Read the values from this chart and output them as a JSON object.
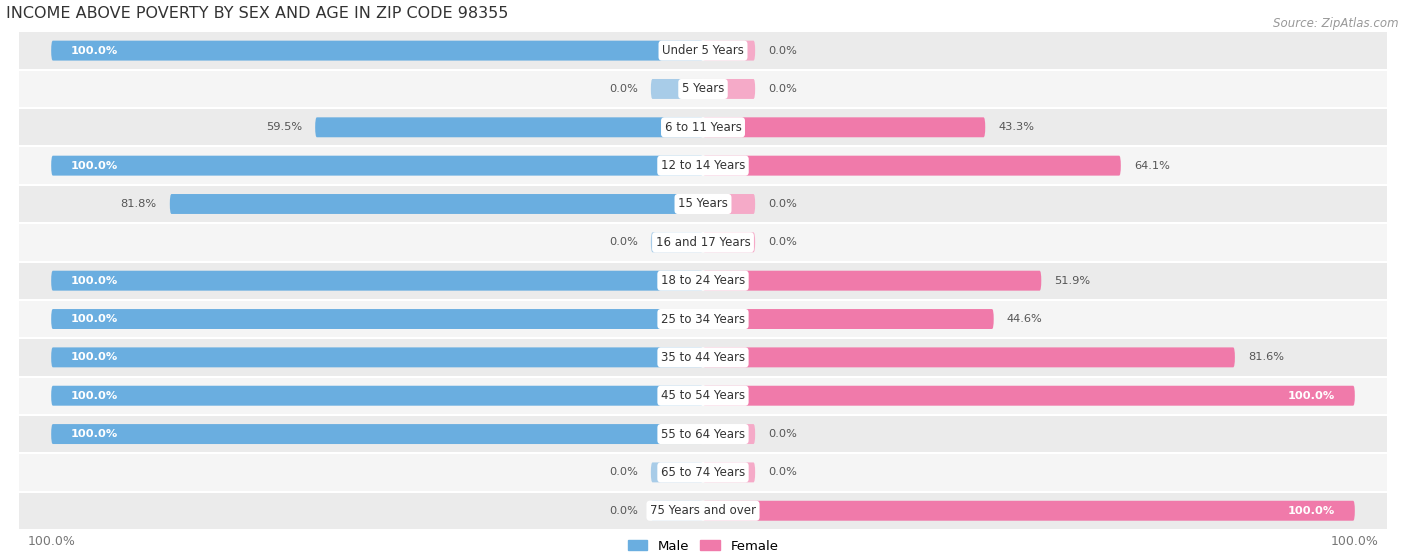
{
  "title": "INCOME ABOVE POVERTY BY SEX AND AGE IN ZIP CODE 98355",
  "source": "Source: ZipAtlas.com",
  "categories": [
    "Under 5 Years",
    "5 Years",
    "6 to 11 Years",
    "12 to 14 Years",
    "15 Years",
    "16 and 17 Years",
    "18 to 24 Years",
    "25 to 34 Years",
    "35 to 44 Years",
    "45 to 54 Years",
    "55 to 64 Years",
    "65 to 74 Years",
    "75 Years and over"
  ],
  "male_values": [
    100.0,
    0.0,
    59.5,
    100.0,
    81.8,
    0.0,
    100.0,
    100.0,
    100.0,
    100.0,
    100.0,
    0.0,
    0.0
  ],
  "female_values": [
    0.0,
    0.0,
    43.3,
    64.1,
    0.0,
    0.0,
    51.9,
    44.6,
    81.6,
    100.0,
    0.0,
    0.0,
    100.0
  ],
  "male_solid_color": "#6aaee0",
  "male_light_color": "#a8cce8",
  "female_solid_color": "#f07aaa",
  "female_light_color": "#f5aac8",
  "row_bg_alt": "#ebebeb",
  "row_bg_main": "#f5f5f5",
  "title_fontsize": 11.5,
  "source_fontsize": 8.5,
  "label_fontsize": 8.5,
  "value_fontsize": 8.2,
  "tick_fontsize": 9,
  "bar_height": 0.52,
  "stub_value": 8.0,
  "max_val": 100.0
}
